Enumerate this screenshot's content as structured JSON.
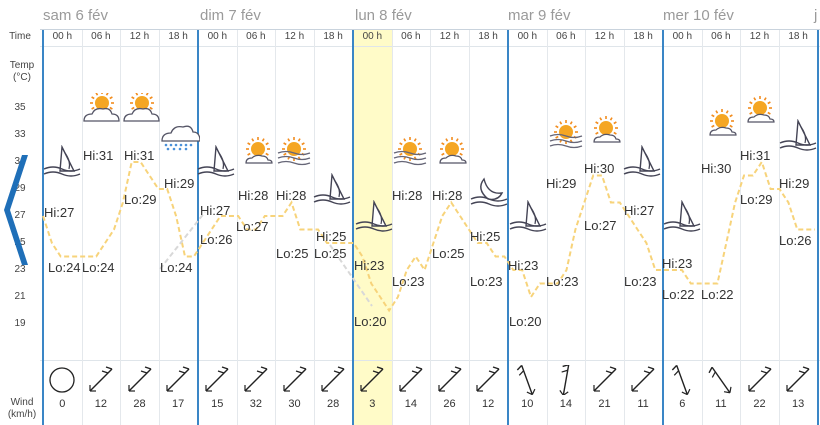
{
  "days": [
    "sam 6 fév",
    "dim 7 fév",
    "lun 8 fév",
    "mar 9 fév",
    "mer 10 fév",
    "j"
  ],
  "row_labels": {
    "time": "Time",
    "temp": "Temp (°C)",
    "wind": "Wind (km/h)"
  },
  "y_ticks": [
    "35",
    "33",
    "31",
    "29",
    "27",
    "25",
    "23",
    "21",
    "19"
  ],
  "hours": [
    "00 h",
    "06 h",
    "12 h",
    "18 h",
    "00 h",
    "06 h",
    "12 h",
    "18 h",
    "00 h",
    "06 h",
    "12 h",
    "18 h",
    "00 h",
    "06 h",
    "12 h",
    "18 h",
    "00 h",
    "06 h",
    "12 h",
    "18 h"
  ],
  "weather_icons": [
    "night-cloudy-icon",
    "partly-cloudy-icon",
    "partly-cloudy-icon",
    "rain-cloud-icon",
    "night-cloudy-icon",
    "sun-cloud-icon",
    "sun-fog-icon",
    "night-cloudy-icon",
    "night-cloudy-icon",
    "sun-fog-icon",
    "sun-cloud-icon",
    "night-clear-icon",
    "night-cloudy-icon",
    "sun-fog-icon",
    "sun-cloud-icon",
    "night-cloudy-icon",
    "night-cloudy-icon",
    "sun-cloud-icon",
    "sun-cloud-icon",
    "night-cloudy-icon"
  ],
  "temp_labels": [
    "Hi:27",
    "Lo:24",
    "Lo:24",
    "Hi:31",
    "Hi:31",
    "Lo:29",
    "Lo:24",
    "Hi:29",
    "Hi:27",
    "Lo:26",
    "Hi:28",
    "Lo:27",
    "Hi:28",
    "Lo:25",
    "Hi:25",
    "Lo:25",
    "Hi:23",
    "Lo:20",
    "Hi:28",
    "Lo:23",
    "Hi:28",
    "Lo:25",
    "Hi:25",
    "Lo:23",
    "Hi:23",
    "Lo:20",
    "Hi:29",
    "Lo:23",
    "Hi:30",
    "Lo:27",
    "Hi:27",
    "Lo:23",
    "Hi:23",
    "Lo:22",
    "Hi:30",
    "Lo:22",
    "Hi:31",
    "Lo:29",
    "Hi:29",
    "Lo:26"
  ],
  "wind_speeds": [
    "0",
    "12",
    "28",
    "17",
    "15",
    "32",
    "30",
    "28",
    "3",
    "14",
    "26",
    "12",
    "10",
    "14",
    "21",
    "11",
    "6",
    "11",
    "22",
    "13"
  ],
  "wind_dirs_deg": [
    0,
    225,
    225,
    225,
    225,
    225,
    225,
    225,
    225,
    225,
    225,
    225,
    160,
    190,
    225,
    225,
    160,
    145,
    225,
    225
  ],
  "temp_series_hourly": [
    27,
    25,
    24,
    24,
    24,
    24,
    24,
    25,
    26,
    28,
    31,
    31,
    30,
    29,
    29,
    27,
    24,
    24,
    25,
    26,
    27,
    27,
    27,
    26,
    26,
    27,
    27,
    27,
    28,
    26,
    26,
    26,
    25,
    25,
    25,
    25,
    24,
    22,
    21,
    20,
    21,
    23,
    24,
    23,
    25,
    27,
    28,
    27,
    26,
    25,
    25,
    24,
    24,
    23,
    23,
    21,
    22,
    22,
    22,
    23,
    26,
    28,
    30,
    30,
    28,
    28,
    27,
    26,
    25,
    23,
    23,
    23,
    23,
    22,
    22,
    22,
    22,
    25,
    28,
    30,
    30,
    31,
    29,
    29,
    28,
    26,
    26,
    26
  ],
  "dashed_gap_series": [
    27,
    26,
    25
  ],
  "colors": {
    "temp_line": "#f7d37a",
    "gap_line": "#d8d8d8",
    "day_divider": "#3a86c6",
    "highlight": "#fffbc8",
    "nav_arrow": "#1f6fb8"
  }
}
